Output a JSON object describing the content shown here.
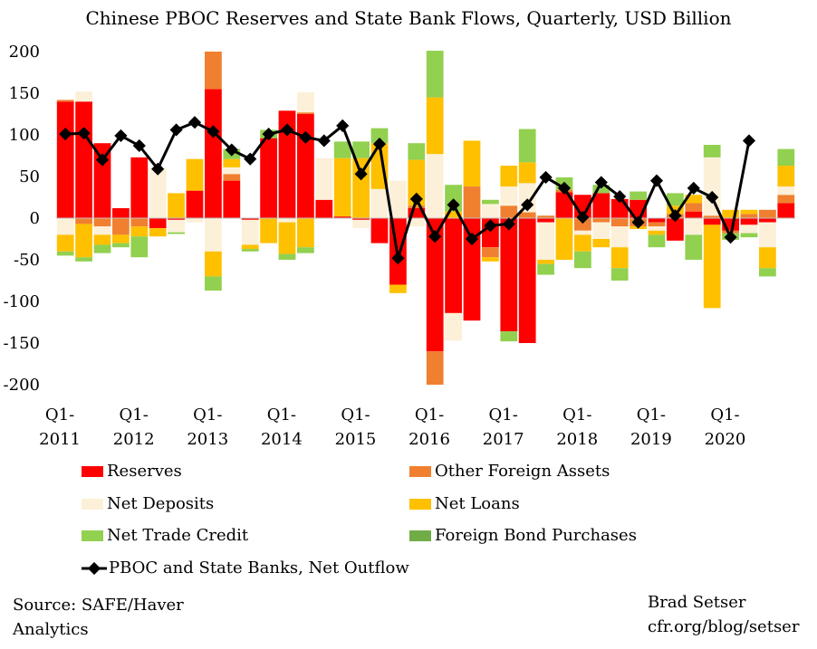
{
  "chart_data": {
    "type": "bar",
    "title": "Chinese PBOC Reserves and State Bank Flows, Quarterly, USD Billion",
    "xlabel": "",
    "ylabel": "",
    "ylim": [
      -200,
      200
    ],
    "yticks": [
      200,
      150,
      100,
      50,
      0,
      -50,
      -100,
      -150,
      -200
    ],
    "ytick_labels": [
      "200",
      "150",
      "100",
      "50",
      "0",
      "-50",
      "-100",
      "-150",
      "-200"
    ],
    "categories": [
      "Q1-2011",
      "Q2-2011",
      "Q3-2011",
      "Q4-2011",
      "Q1-2012",
      "Q2-2012",
      "Q3-2012",
      "Q4-2012",
      "Q1-2013",
      "Q2-2013",
      "Q3-2013",
      "Q4-2013",
      "Q1-2014",
      "Q2-2014",
      "Q3-2014",
      "Q4-2014",
      "Q1-2015",
      "Q2-2015",
      "Q3-2015",
      "Q4-2015",
      "Q1-2016",
      "Q2-2016",
      "Q3-2016",
      "Q4-2016",
      "Q1-2017",
      "Q2-2017",
      "Q3-2017",
      "Q4-2017",
      "Q1-2018",
      "Q2-2018",
      "Q3-2018",
      "Q4-2018",
      "Q1-2019",
      "Q2-2019",
      "Q3-2019",
      "Q4-2019",
      "Q1-2020",
      "Q2-2020",
      "Q3-2020",
      "Q4-2020"
    ],
    "x_tick_labels": [
      {
        "index": 0,
        "line1": "Q1-",
        "line2": "2011"
      },
      {
        "index": 4,
        "line1": "Q1-",
        "line2": "2012"
      },
      {
        "index": 8,
        "line1": "Q1-",
        "line2": "2013"
      },
      {
        "index": 12,
        "line1": "Q1-",
        "line2": "2014"
      },
      {
        "index": 16,
        "line1": "Q1-",
        "line2": "2015"
      },
      {
        "index": 20,
        "line1": "Q1-",
        "line2": "2016"
      },
      {
        "index": 24,
        "line1": "Q1-",
        "line2": "2017"
      },
      {
        "index": 28,
        "line1": "Q1-",
        "line2": "2018"
      },
      {
        "index": 32,
        "line1": "Q1-",
        "line2": "2019"
      },
      {
        "index": 36,
        "line1": "Q1-",
        "line2": "2020"
      }
    ],
    "series": [
      {
        "name": "Reserves",
        "color": "#ff0000",
        "values": [
          140,
          140,
          90,
          12,
          73,
          -12,
          -2,
          33,
          155,
          45,
          -2,
          96,
          129,
          125,
          22,
          2,
          -2,
          -30,
          -80,
          12,
          -160,
          -114,
          -123,
          -35,
          -136,
          -150,
          -5,
          31,
          28,
          30,
          23,
          22,
          -5,
          -27,
          8,
          -8,
          -15,
          -8,
          -5,
          18
        ]
      },
      {
        "name": "Other Foreign Assets",
        "color": "#f08030",
        "values": [
          2,
          -7,
          -10,
          -20,
          -10,
          0,
          0,
          0,
          45,
          8,
          0,
          0,
          0,
          2,
          0,
          0,
          0,
          0,
          0,
          3,
          -40,
          0,
          38,
          -12,
          15,
          7,
          3,
          3,
          -15,
          -5,
          -10,
          -10,
          -5,
          5,
          10,
          3,
          -3,
          5,
          10,
          10
        ]
      },
      {
        "name": "Net Deposits",
        "color": "#fdf0d8",
        "values": [
          -20,
          12,
          -10,
          0,
          0,
          60,
          -15,
          -5,
          -40,
          8,
          -30,
          0,
          -5,
          24,
          50,
          0,
          -10,
          35,
          45,
          -10,
          77,
          -33,
          0,
          17,
          23,
          35,
          -45,
          0,
          -5,
          -20,
          -25,
          0,
          -5,
          0,
          -20,
          70,
          0,
          -10,
          -30,
          10
        ]
      },
      {
        "name": "Net Loans",
        "color": "#ffc000",
        "values": [
          -20,
          -40,
          -12,
          -10,
          -12,
          -10,
          30,
          38,
          -30,
          10,
          -5,
          -30,
          -38,
          -35,
          0,
          70,
          72,
          55,
          -10,
          55,
          68,
          8,
          55,
          -5,
          25,
          25,
          -5,
          -50,
          -20,
          -10,
          -25,
          -3,
          -5,
          10,
          10,
          -100,
          10,
          5,
          -25,
          25
        ]
      },
      {
        "name": "Net Trade Credit",
        "color": "#92d050",
        "values": [
          -5,
          -5,
          -10,
          -5,
          -25,
          0,
          -2,
          0,
          -17,
          12,
          -3,
          10,
          -7,
          -7,
          0,
          20,
          20,
          18,
          0,
          20,
          56,
          32,
          0,
          5,
          -12,
          40,
          -13,
          15,
          -20,
          10,
          -15,
          10,
          -15,
          15,
          -30,
          15,
          -8,
          -5,
          -10,
          20
        ]
      },
      {
        "name": "Foreign Bond Purchases",
        "color": "#70ad47",
        "values": [
          0,
          0,
          0,
          0,
          0,
          0,
          0,
          0,
          0,
          0,
          0,
          0,
          0,
          0,
          0,
          0,
          0,
          0,
          0,
          0,
          0,
          0,
          0,
          0,
          0,
          0,
          0,
          0,
          0,
          0,
          0,
          0,
          0,
          0,
          0,
          0,
          0,
          0,
          0,
          0
        ]
      },
      {
        "name": "PBOC and State Banks, Net Outflow",
        "color": "#000000",
        "type": "line",
        "values": [
          101,
          102,
          70,
          99,
          87,
          59,
          106,
          115,
          104,
          82,
          71,
          101,
          106,
          97,
          93,
          111,
          53,
          89,
          -48,
          23,
          -22,
          16,
          -25,
          -9,
          -7,
          16,
          49,
          36,
          1,
          43,
          26,
          -5,
          45,
          3,
          36,
          25,
          -23,
          93,
          null,
          null
        ]
      }
    ]
  },
  "legend": {
    "reserves": "Reserves",
    "other_foreign_assets": "Other Foreign Assets",
    "net_deposits": "Net Deposits",
    "net_loans": "Net Loans",
    "net_trade_credit": "Net Trade Credit",
    "foreign_bond_purchases": "Foreign Bond Purchases",
    "net_outflow": "PBOC and State Banks, Net Outflow"
  },
  "footer": {
    "source_line1": "Source: SAFE/Haver",
    "source_line2": "Analytics",
    "author_line1": "Brad Setser",
    "author_line2": "cfr.org/blog/setser"
  }
}
